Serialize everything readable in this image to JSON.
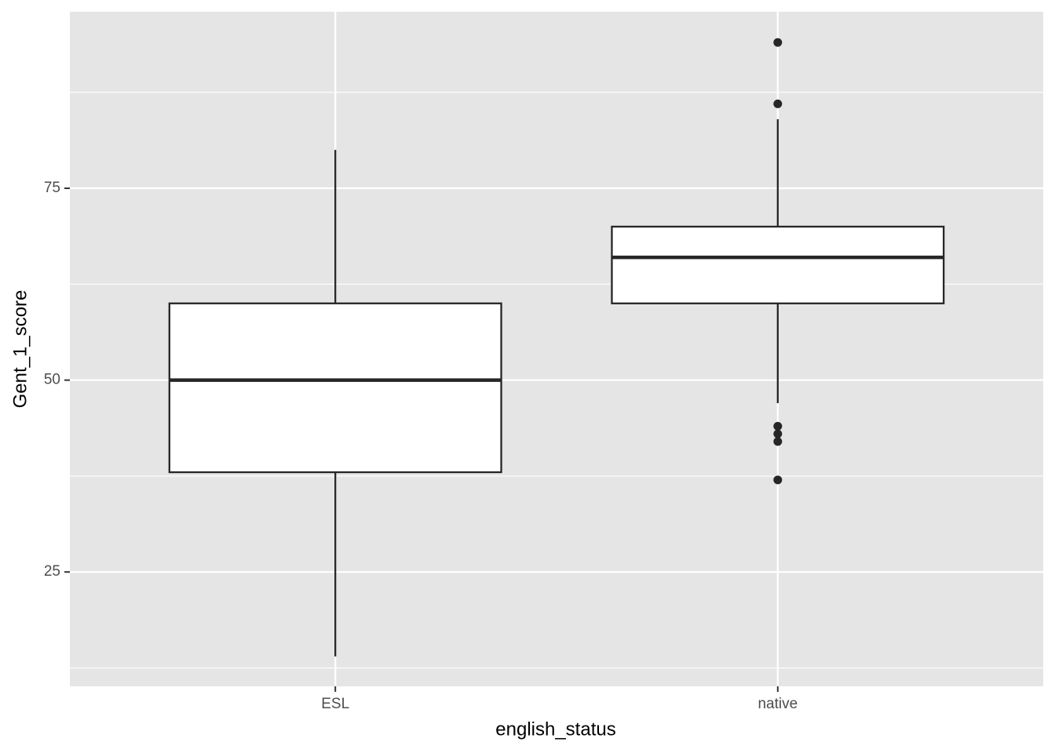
{
  "chart_data": {
    "type": "boxplot",
    "x_label": "english_status",
    "y_label": "Gent_1_score",
    "categories": [
      "ESL",
      "native"
    ],
    "boxes": [
      {
        "whisker_low": 14,
        "q1": 38,
        "median": 50,
        "q3": 60,
        "whisker_high": 80,
        "outliers": []
      },
      {
        "whisker_low": 47,
        "q1": 60,
        "median": 66,
        "q3": 70,
        "whisker_high": 84,
        "outliers": [
          94,
          86,
          44,
          43,
          42,
          37
        ]
      }
    ],
    "ylim": [
      10.1,
      98
    ],
    "yticks": [
      25,
      50,
      75
    ],
    "minor_gridlines": [
      12.5,
      37.5,
      62.5,
      87.5
    ],
    "grid": true,
    "panel_color": "#e5e5e5",
    "box_fill": "#ffffff",
    "line_color": "#262626"
  }
}
